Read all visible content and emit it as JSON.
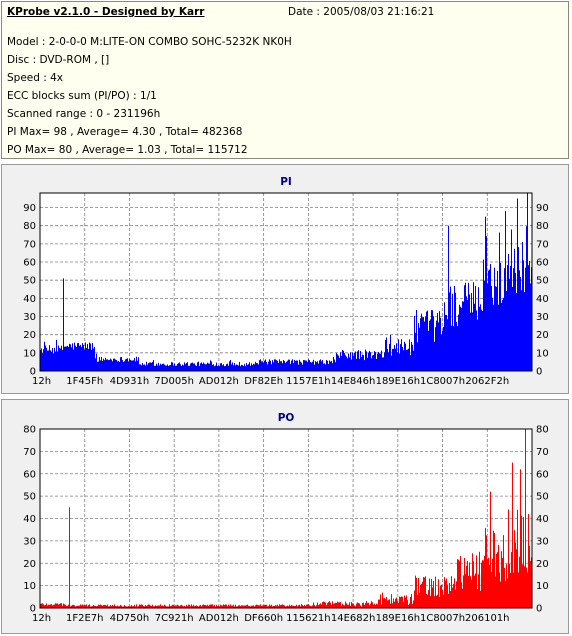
{
  "header": {
    "title": "KProbe v2.1.0 - Designed by Karr",
    "date": "Date : 2005/08/03 21:16:21",
    "lines": [
      "Model : 2-0-0-0 M:LITE-ON COMBO SOHC-5232K NK0H",
      "Disc : DVD-ROM ,  []",
      "Speed : 4x",
      "ECC blocks sum (PI/PO) : 1/1",
      "Scanned range : 0 - 231196h",
      "PI Max= 98 , Average= 4.30 , Total= 482368",
      "PO Max= 80 , Average= 1.03 , Total= 115712"
    ]
  },
  "colors": {
    "pi": "#0000ff",
    "po": "#ff0000",
    "plot_bg": "#ffffff",
    "panel_bg": "#f0f0f0",
    "grid": "#808080",
    "title": "#000090"
  },
  "chart_data": [
    {
      "type": "bar",
      "title": "PI",
      "xlabel": "",
      "ylabel": "",
      "ylim": [
        0,
        98
      ],
      "grid": true,
      "x_tick_labels": [
        "12h",
        "1F45Fh",
        "4D931h",
        "7D005h",
        "AD012h",
        "DF82Eh",
        "1157E1h",
        "14E846h",
        "189E16h",
        "1C8007h",
        "2062F2h"
      ],
      "y_tick_labels": [
        "0",
        "10",
        "20",
        "30",
        "40",
        "50",
        "60",
        "70",
        "80",
        "90"
      ],
      "x_range": [
        "0",
        "231196h"
      ],
      "profile": [
        {
          "from": 0.0,
          "to": 0.045,
          "base": 11,
          "amp": 5
        },
        {
          "from": 0.045,
          "to": 0.05,
          "base": 12,
          "amp": 6
        },
        {
          "from": 0.05,
          "to": 0.11,
          "base": 13,
          "amp": 5
        },
        {
          "from": 0.11,
          "to": 0.2,
          "base": 6,
          "amp": 3
        },
        {
          "from": 0.2,
          "to": 0.44,
          "base": 3.5,
          "amp": 2.5
        },
        {
          "from": 0.44,
          "to": 0.6,
          "base": 4.5,
          "amp": 3
        },
        {
          "from": 0.6,
          "to": 0.7,
          "base": 8,
          "amp": 6
        },
        {
          "from": 0.7,
          "to": 0.76,
          "base": 12,
          "amp": 10
        },
        {
          "from": 0.76,
          "to": 0.82,
          "base": 22,
          "amp": 18
        },
        {
          "from": 0.82,
          "to": 0.9,
          "base": 33,
          "amp": 25
        },
        {
          "from": 0.9,
          "to": 0.95,
          "base": 45,
          "amp": 30
        },
        {
          "from": 0.95,
          "to": 1.0,
          "base": 55,
          "amp": 40
        }
      ],
      "spikes": [
        {
          "x": 0.047,
          "value": 51
        },
        {
          "x": 0.99,
          "value": 98
        },
        {
          "x": 0.97,
          "value": 95
        },
        {
          "x": 0.945,
          "value": 88
        },
        {
          "x": 0.905,
          "value": 85
        },
        {
          "x": 0.83,
          "value": 80
        }
      ]
    },
    {
      "type": "bar",
      "title": "PO",
      "xlabel": "",
      "ylabel": "",
      "ylim": [
        0,
        80
      ],
      "grid": true,
      "x_tick_labels": [
        "12h",
        "1F2E7h",
        "4D750h",
        "7C921h",
        "AD012h",
        "DF660h",
        "115621h",
        "14E682h",
        "189E16h",
        "1C8007h",
        "206101h"
      ],
      "y_tick_labels": [
        "0",
        "10",
        "20",
        "30",
        "40",
        "50",
        "60",
        "70",
        "80"
      ],
      "x_range": [
        "0",
        "231196h"
      ],
      "profile": [
        {
          "from": 0.0,
          "to": 0.05,
          "base": 1.5,
          "amp": 1.5
        },
        {
          "from": 0.05,
          "to": 0.55,
          "base": 1,
          "amp": 1
        },
        {
          "from": 0.55,
          "to": 0.68,
          "base": 1.5,
          "amp": 2.5
        },
        {
          "from": 0.68,
          "to": 0.76,
          "base": 3,
          "amp": 5
        },
        {
          "from": 0.76,
          "to": 0.84,
          "base": 8,
          "amp": 10
        },
        {
          "from": 0.84,
          "to": 0.9,
          "base": 14,
          "amp": 18
        },
        {
          "from": 0.9,
          "to": 0.95,
          "base": 20,
          "amp": 25
        },
        {
          "from": 0.95,
          "to": 1.0,
          "base": 25,
          "amp": 30
        }
      ],
      "spikes": [
        {
          "x": 0.058,
          "value": 45
        },
        {
          "x": 0.96,
          "value": 65
        },
        {
          "x": 0.985,
          "value": 80
        },
        {
          "x": 0.975,
          "value": 62
        },
        {
          "x": 0.915,
          "value": 52
        }
      ]
    }
  ]
}
